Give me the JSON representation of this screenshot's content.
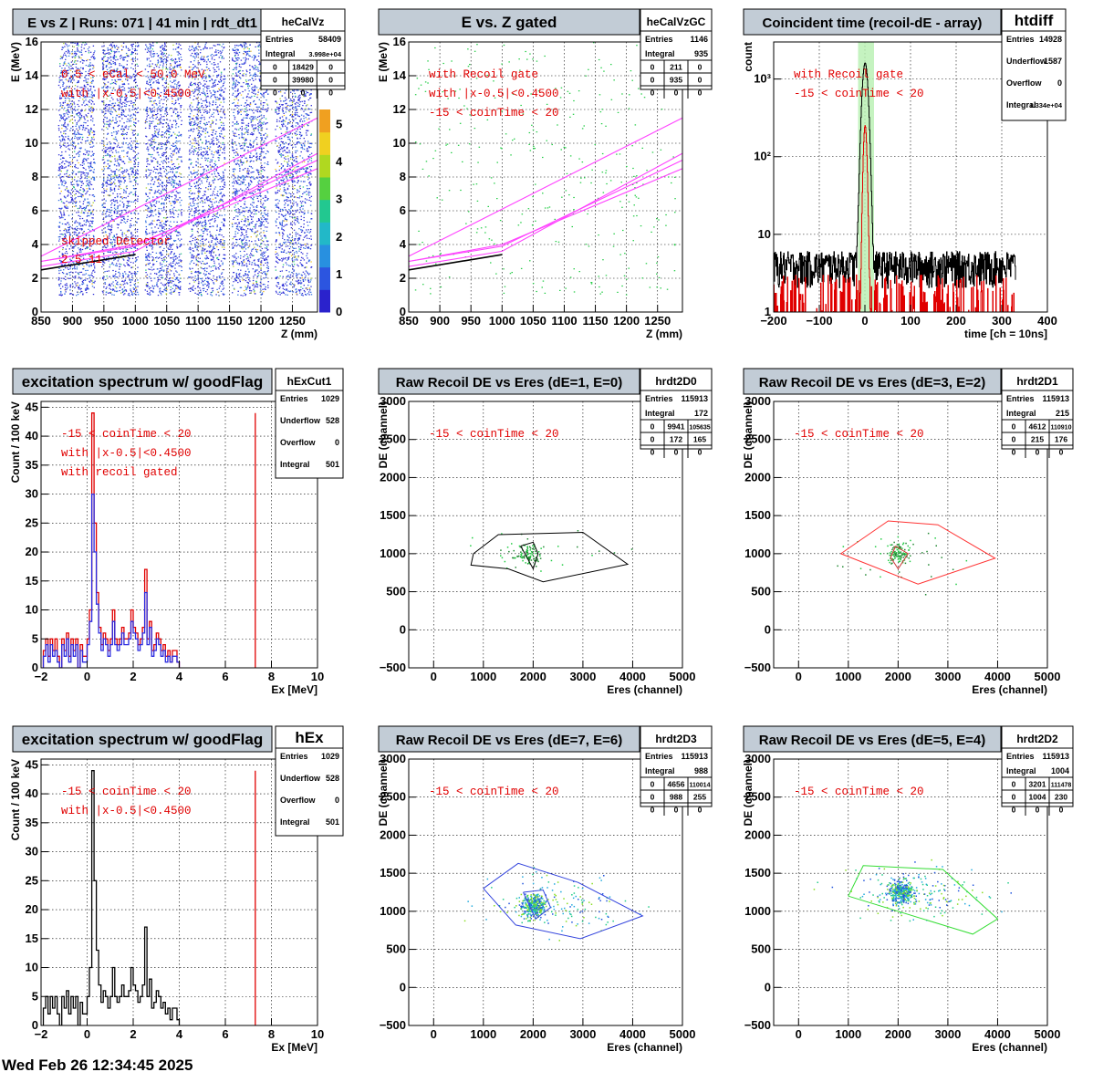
{
  "footer": {
    "timestamp": "Wed Feb 26 12:34:45 2025"
  },
  "chart_data": [
    {
      "id": "p1",
      "type": "heatmap",
      "title": "E vs Z | Runs: 071 | 41 min | rdt_dt1",
      "xlabel": "Z (mm)",
      "ylabel": "E (MeV)",
      "xlim": [
        850,
        1290
      ],
      "ylim": [
        0,
        16
      ],
      "xticks": [
        850,
        900,
        950,
        1000,
        1050,
        1100,
        1150,
        1200,
        1250
      ],
      "yticks": [
        0,
        2,
        4,
        6,
        8,
        10,
        12,
        14,
        16
      ],
      "palette_scale": [
        0,
        1,
        2,
        3,
        4,
        5
      ],
      "stats": {
        "name": "heCalVz",
        "rows": [
          [
            "Entries",
            "58409"
          ],
          [
            "Integral",
            "3.998e+04"
          ]
        ],
        "matrix": [
          [
            "0",
            "18429",
            "0"
          ],
          [
            "0",
            "39980",
            "0"
          ],
          [
            "0",
            "0",
            "0"
          ]
        ]
      },
      "annotations": [
        "0.5 < eCal < 50.0 MeV",
        "with |x-0.5|<0.4500",
        "skipped Detector",
        "2   5   11"
      ],
      "detector_strips_mm": [
        [
          877,
          935
        ],
        [
          946,
          1004
        ],
        [
          1015,
          1073
        ],
        [
          1084,
          1142
        ],
        [
          1153,
          1211
        ],
        [
          1222,
          1280
        ]
      ],
      "kinematic_lines": [
        {
          "color": "#ff44ff",
          "points": [
            [
              850,
              3.3
            ],
            [
              1290,
              11.5
            ]
          ]
        },
        {
          "color": "#ff44ff",
          "points": [
            [
              850,
              2.7
            ],
            [
              1000,
              3.6
            ],
            [
              1290,
              9.4
            ]
          ]
        },
        {
          "color": "#ff44ff",
          "points": [
            [
              850,
              3.0
            ],
            [
              1000,
              3.9
            ],
            [
              1290,
              9.0
            ]
          ]
        },
        {
          "color": "#ff44ff",
          "points": [
            [
              850,
              3.0
            ],
            [
              1000,
              4.0
            ],
            [
              1290,
              8.5
            ]
          ]
        },
        {
          "color": "#000000",
          "points": [
            [
              850,
              2.5
            ],
            [
              1000,
              3.4
            ]
          ]
        }
      ]
    },
    {
      "id": "p2",
      "type": "scatter",
      "title": "E vs. Z gated",
      "xlabel": "Z (mm)",
      "ylabel": "E (MeV)",
      "xlim": [
        850,
        1290
      ],
      "ylim": [
        0,
        16
      ],
      "xticks": [
        850,
        900,
        950,
        1000,
        1050,
        1100,
        1150,
        1200,
        1250
      ],
      "yticks": [
        0,
        2,
        4,
        6,
        8,
        10,
        12,
        14,
        16
      ],
      "stats": {
        "name": "heCalVzGC",
        "rows": [
          [
            "Entries",
            "1146"
          ],
          [
            "Integral",
            "935"
          ]
        ],
        "matrix": [
          [
            "0",
            "211",
            "0"
          ],
          [
            "0",
            "935",
            "0"
          ],
          [
            "0",
            "0",
            "0"
          ]
        ]
      },
      "annotations": [
        "with Recoil gate",
        "with |x-0.5|<0.4500",
        "-15 < coinTime < 20"
      ],
      "kinematic_lines": [
        {
          "color": "#ff44ff",
          "points": [
            [
              850,
              3.3
            ],
            [
              1290,
              11.5
            ]
          ]
        },
        {
          "color": "#ff44ff",
          "points": [
            [
              850,
              2.7
            ],
            [
              1000,
              3.6
            ],
            [
              1290,
              9.4
            ]
          ]
        },
        {
          "color": "#ff44ff",
          "points": [
            [
              850,
              3.0
            ],
            [
              1000,
              3.9
            ],
            [
              1290,
              9.0
            ]
          ]
        },
        {
          "color": "#ff44ff",
          "points": [
            [
              850,
              3.0
            ],
            [
              1000,
              4.0
            ],
            [
              1290,
              8.5
            ]
          ]
        },
        {
          "color": "#000000",
          "points": [
            [
              850,
              2.5
            ],
            [
              1000,
              3.4
            ]
          ]
        }
      ]
    },
    {
      "id": "p3",
      "type": "line",
      "title": "Coincident time (recoil-dE - array)",
      "xlabel": "time [ch = 10ns]",
      "ylabel": "count",
      "xlim": [
        -200,
        400
      ],
      "ylim": [
        1,
        3000
      ],
      "yscale": "log",
      "xticks": [
        -200,
        -100,
        0,
        100,
        200,
        300,
        400
      ],
      "yticks": [
        1,
        10,
        100,
        1000
      ],
      "ytick_labels": [
        "1",
        "10",
        "10²",
        "10³"
      ],
      "gate_band": [
        -15,
        20
      ],
      "stats": {
        "name": "htdiff",
        "rows": [
          [
            "Entries",
            "14928"
          ],
          [
            "Underflow",
            "1587"
          ],
          [
            "Overflow",
            "0"
          ],
          [
            "Integral",
            "1.334e+04"
          ]
        ]
      },
      "annotations": [
        "with Recoil gate",
        "-15 < coinTime < 20"
      ],
      "series": [
        {
          "color": "#000000",
          "peak": 1600
        },
        {
          "color": "#e00000",
          "peak": 250
        }
      ]
    },
    {
      "id": "p4",
      "type": "bar",
      "title": "excitation spectrum w/ goodFlag",
      "xlabel": "Ex [MeV]",
      "ylabel": "Count / 100 keV",
      "xlim": [
        -2,
        10
      ],
      "ylim": [
        0,
        46
      ],
      "xticks": [
        -2,
        0,
        2,
        4,
        6,
        8,
        10
      ],
      "yticks": [
        0,
        5,
        10,
        15,
        20,
        25,
        30,
        35,
        40,
        45
      ],
      "vline": 7.3,
      "stats": {
        "name": "hExCut1",
        "rows": [
          [
            "Entries",
            "1029"
          ],
          [
            "Underflow",
            "528"
          ],
          [
            "Overflow",
            "0"
          ],
          [
            "Integral",
            "501"
          ]
        ]
      },
      "annotations": [
        "-15 < coinTime < 20",
        "with |x-0.5|<0.4500",
        "with recoil gated"
      ],
      "bin_start": -1.9,
      "bin_width": 0.1,
      "series": [
        {
          "color": "#e00000",
          "values": [
            3,
            5,
            2,
            5,
            3,
            5,
            2,
            0,
            5,
            3,
            6,
            2,
            5,
            3,
            5,
            0,
            4,
            2,
            2,
            5,
            10,
            44,
            25,
            13,
            7,
            4,
            6,
            5,
            3,
            5,
            10,
            5,
            4,
            5,
            7,
            5,
            5,
            6,
            10,
            7,
            6,
            4,
            5,
            7,
            17,
            5,
            8,
            3,
            4,
            6,
            5,
            3,
            4,
            2,
            3,
            1,
            3,
            3,
            1
          ]
        },
        {
          "color": "#2a2adf",
          "values": [
            2,
            4,
            1,
            4,
            2,
            3,
            1,
            0,
            4,
            2,
            5,
            1,
            4,
            2,
            4,
            0,
            3,
            1,
            1,
            4,
            8,
            30,
            20,
            11,
            6,
            3,
            5,
            4,
            2,
            4,
            8,
            4,
            3,
            4,
            6,
            4,
            4,
            5,
            8,
            6,
            5,
            3,
            4,
            6,
            13,
            4,
            7,
            2,
            3,
            5,
            4,
            2,
            3,
            1,
            2,
            1,
            2,
            2,
            1
          ]
        }
      ]
    },
    {
      "id": "p5",
      "type": "scatter",
      "title": "Raw Recoil DE vs Eres (dE=1, E=0)",
      "xlabel": "Eres (channel)",
      "ylabel": "DE (channel)",
      "xlim": [
        -500,
        5000
      ],
      "ylim": [
        -500,
        3000
      ],
      "xticks": [
        0,
        1000,
        2000,
        3000,
        4000,
        5000
      ],
      "yticks": [
        -500,
        0,
        500,
        1000,
        1500,
        2000,
        2500,
        3000
      ],
      "stats": {
        "name": "hrdt2D0",
        "rows": [
          [
            "Entries",
            "115913"
          ],
          [
            "Integral",
            "172"
          ]
        ],
        "matrix": [
          [
            "0",
            "9941",
            "105635"
          ],
          [
            "0",
            "172",
            "165"
          ],
          [
            "0",
            "0",
            "0"
          ]
        ]
      },
      "annotations": [
        "-15 < coinTime < 20"
      ],
      "cluster": {
        "x": 1900,
        "y": 1000,
        "count": 120
      },
      "cuts": [
        {
          "color": "#000000",
          "points": [
            [
              800,
              1000
            ],
            [
              1300,
              1250
            ],
            [
              3000,
              1280
            ],
            [
              3900,
              860
            ],
            [
              2200,
              630
            ],
            [
              1500,
              800
            ],
            [
              750,
              850
            ],
            [
              800,
              1000
            ]
          ]
        },
        {
          "color": "#000000",
          "points": [
            [
              1750,
              1100
            ],
            [
              2000,
              1150
            ],
            [
              2100,
              1000
            ],
            [
              2000,
              800
            ],
            [
              1750,
              1100
            ]
          ]
        }
      ]
    },
    {
      "id": "p6",
      "type": "scatter",
      "title": "Raw Recoil DE vs Eres (dE=3, E=2)",
      "xlabel": "Eres (channel)",
      "ylabel": "DE (channel)",
      "xlim": [
        -500,
        5000
      ],
      "ylim": [
        -500,
        3000
      ],
      "xticks": [
        0,
        1000,
        2000,
        3000,
        4000,
        5000
      ],
      "yticks": [
        -500,
        0,
        500,
        1000,
        1500,
        2000,
        2500,
        3000
      ],
      "stats": {
        "name": "hrdt2D1",
        "rows": [
          [
            "Entries",
            "115913"
          ],
          [
            "Integral",
            "215"
          ]
        ],
        "matrix": [
          [
            "0",
            "4612",
            "110910"
          ],
          [
            "0",
            "215",
            "176"
          ],
          [
            "0",
            "0",
            "0"
          ]
        ]
      },
      "annotations": [
        "-15 < coinTime < 20"
      ],
      "cluster": {
        "x": 2000,
        "y": 1000,
        "count": 130
      },
      "cuts": [
        {
          "color": "#ff3333",
          "points": [
            [
              850,
              1000
            ],
            [
              1800,
              1430
            ],
            [
              2800,
              1380
            ],
            [
              3950,
              940
            ],
            [
              2400,
              600
            ],
            [
              850,
              1000
            ]
          ]
        },
        {
          "color": "#cc3333",
          "points": [
            [
              1950,
              1100
            ],
            [
              2200,
              1000
            ],
            [
              2000,
              800
            ],
            [
              1850,
              950
            ],
            [
              1950,
              1100
            ]
          ]
        }
      ]
    },
    {
      "id": "p7",
      "type": "bar",
      "title": "excitation spectrum w/ goodFlag",
      "xlabel": "Ex [MeV]",
      "ylabel": "Count / 100 keV",
      "xlim": [
        -2,
        10
      ],
      "ylim": [
        0,
        46
      ],
      "xticks": [
        -2,
        0,
        2,
        4,
        6,
        8,
        10
      ],
      "yticks": [
        0,
        5,
        10,
        15,
        20,
        25,
        30,
        35,
        40,
        45
      ],
      "vline": 7.3,
      "stats": {
        "name": "hEx",
        "rows": [
          [
            "Entries",
            "1029"
          ],
          [
            "Underflow",
            "528"
          ],
          [
            "Overflow",
            "0"
          ],
          [
            "Integral",
            "501"
          ]
        ]
      },
      "annotations": [
        "-15 < coinTime < 20",
        "with |x-0.5|<0.4500"
      ],
      "bin_start": -1.9,
      "bin_width": 0.1,
      "series": [
        {
          "color": "#000000",
          "values": [
            3,
            5,
            2,
            5,
            3,
            5,
            2,
            0,
            5,
            3,
            6,
            2,
            5,
            3,
            5,
            0,
            4,
            2,
            2,
            5,
            10,
            44,
            25,
            13,
            7,
            4,
            6,
            5,
            3,
            5,
            10,
            5,
            4,
            5,
            7,
            5,
            5,
            6,
            10,
            7,
            6,
            4,
            5,
            7,
            17,
            5,
            8,
            3,
            4,
            6,
            5,
            3,
            4,
            2,
            3,
            1,
            3,
            3,
            1
          ]
        }
      ]
    },
    {
      "id": "p8",
      "type": "scatter",
      "title": "Raw Recoil DE vs Eres (dE=7, E=6)",
      "xlabel": "Eres (channel)",
      "ylabel": "DE (channel)",
      "xlim": [
        -500,
        5000
      ],
      "ylim": [
        -500,
        3000
      ],
      "xticks": [
        0,
        1000,
        2000,
        3000,
        4000,
        5000
      ],
      "yticks": [
        -500,
        0,
        500,
        1000,
        1500,
        2000,
        2500,
        3000
      ],
      "stats": {
        "name": "hrdt2D3",
        "rows": [
          [
            "Entries",
            "115913"
          ],
          [
            "Integral",
            "988"
          ]
        ],
        "matrix": [
          [
            "0",
            "4656",
            "110014"
          ],
          [
            "0",
            "988",
            "255"
          ],
          [
            "0",
            "0",
            "0"
          ]
        ]
      },
      "annotations": [
        "-15 < coinTime < 20"
      ],
      "cluster": {
        "x": 2000,
        "y": 1080,
        "count": 500
      },
      "cuts": [
        {
          "color": "#3344dd",
          "points": [
            [
              1000,
              1300
            ],
            [
              1700,
              1630
            ],
            [
              2900,
              1380
            ],
            [
              4200,
              940
            ],
            [
              2950,
              640
            ],
            [
              1650,
              820
            ],
            [
              1000,
              1300
            ]
          ]
        },
        {
          "color": "#3344dd",
          "points": [
            [
              1800,
              1250
            ],
            [
              2200,
              1280
            ],
            [
              2350,
              1050
            ],
            [
              2050,
              900
            ],
            [
              1800,
              1250
            ]
          ]
        }
      ]
    },
    {
      "id": "p9",
      "type": "scatter",
      "title": "Raw Recoil DE vs Eres (dE=5, E=4)",
      "xlabel": "Eres (channel)",
      "ylabel": "DE (channel)",
      "xlim": [
        -500,
        5000
      ],
      "ylim": [
        -500,
        3000
      ],
      "xticks": [
        0,
        1000,
        2000,
        3000,
        4000,
        5000
      ],
      "yticks": [
        -500,
        0,
        500,
        1000,
        1500,
        2000,
        2500,
        3000
      ],
      "stats": {
        "name": "hrdt2D2",
        "rows": [
          [
            "Entries",
            "115913"
          ],
          [
            "Integral",
            "1004"
          ]
        ],
        "matrix": [
          [
            "0",
            "3201",
            "111478"
          ],
          [
            "0",
            "1004",
            "230"
          ],
          [
            "0",
            "0",
            "0"
          ]
        ]
      },
      "annotations": [
        "-15 < coinTime < 20"
      ],
      "cluster": {
        "x": 2050,
        "y": 1250,
        "count": 550
      },
      "cuts": [
        {
          "color": "#33dd33",
          "points": [
            [
              1000,
              1200
            ],
            [
              1300,
              1600
            ],
            [
              2900,
              1550
            ],
            [
              4000,
              900
            ],
            [
              3500,
              700
            ],
            [
              1000,
              1200
            ]
          ]
        }
      ]
    }
  ]
}
